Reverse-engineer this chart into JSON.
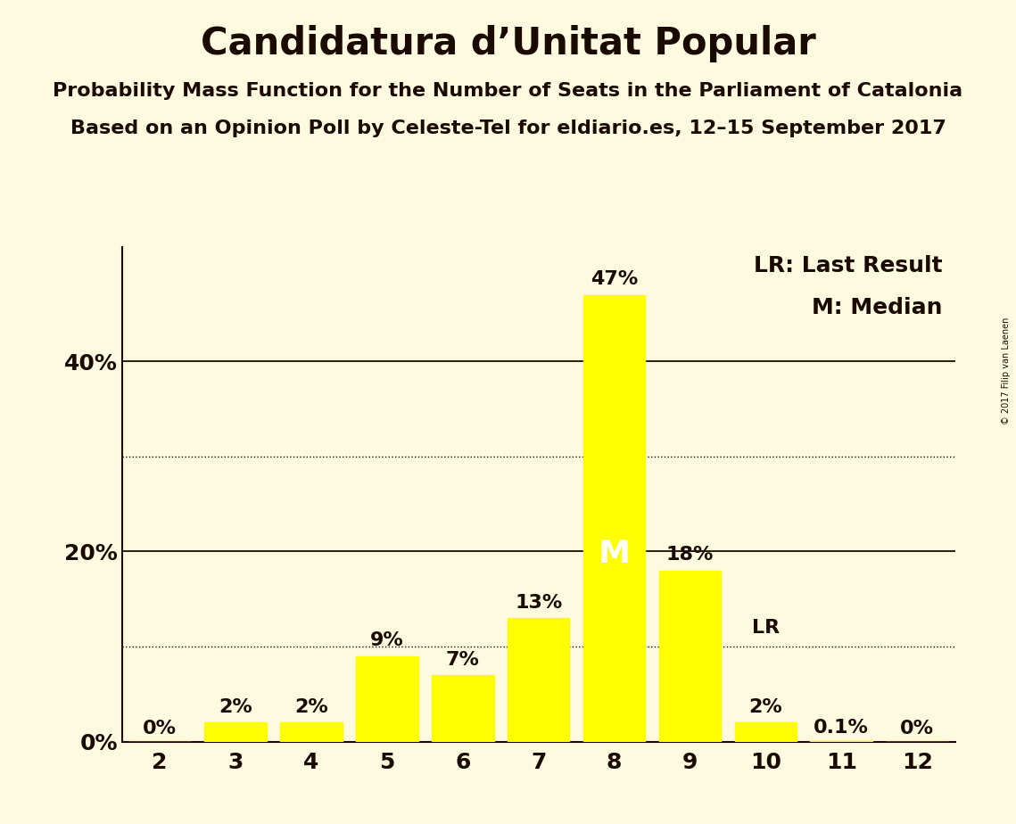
{
  "title": "Candidatura d’Unitat Popular",
  "subtitle1": "Probability Mass Function for the Number of Seats in the Parliament of Catalonia",
  "subtitle2": "Based on an Opinion Poll by Celeste-Tel for eldiario.es, 12–15 September 2017",
  "categories": [
    2,
    3,
    4,
    5,
    6,
    7,
    8,
    9,
    10,
    11,
    12
  ],
  "values": [
    0.0,
    2.0,
    2.0,
    9.0,
    7.0,
    13.0,
    47.0,
    18.0,
    2.0,
    0.1,
    0.0
  ],
  "labels": [
    "0%",
    "2%",
    "2%",
    "9%",
    "7%",
    "13%",
    "47%",
    "18%",
    "2%",
    "0.1%",
    "0%"
  ],
  "bar_color": "#FFFF00",
  "background_color": "#FEFAE0",
  "text_color": "#1a0a00",
  "ylim": [
    0,
    52
  ],
  "solid_gridlines": [
    20,
    40
  ],
  "dotted_gridlines": [
    10,
    30
  ],
  "ytick_positions": [
    0,
    20,
    40
  ],
  "ytick_labels": [
    "0%",
    "20%",
    "40%"
  ],
  "median_bar": 8,
  "lr_bar": 10,
  "lr_label": "LR",
  "median_label": "M",
  "legend_lr": "LR: Last Result",
  "legend_m": "M: Median",
  "copyright": "© 2017 Filip van Laenen",
  "title_fontsize": 30,
  "subtitle_fontsize": 16,
  "label_fontsize": 16,
  "axis_fontsize": 18,
  "legend_fontsize": 18,
  "bar_width": 0.82
}
